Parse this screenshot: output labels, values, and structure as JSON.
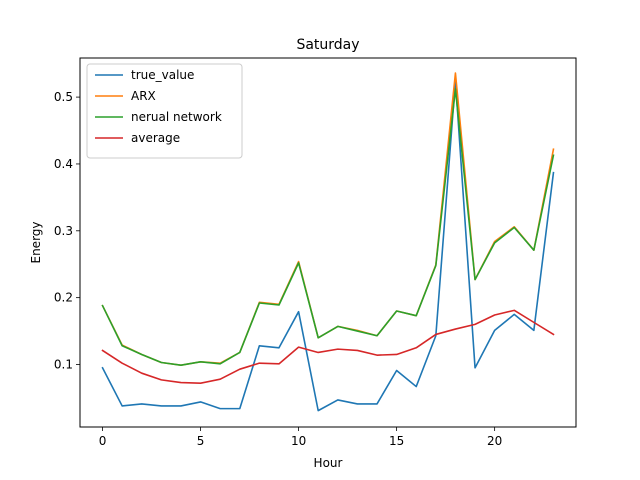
{
  "chart_data": {
    "type": "line",
    "title": "Saturday",
    "xlabel": "Hour",
    "ylabel": "Energy",
    "xlim": [
      -1.15,
      24.15
    ],
    "ylim": [
      0.0065,
      0.5585
    ],
    "xticks": [
      0,
      5,
      10,
      15,
      20
    ],
    "yticks": [
      0.1,
      0.2,
      0.3,
      0.4,
      0.5
    ],
    "legend_position": "top-left",
    "x": [
      0,
      1,
      2,
      3,
      4,
      5,
      6,
      7,
      8,
      9,
      10,
      11,
      12,
      13,
      14,
      15,
      16,
      17,
      18,
      19,
      20,
      21,
      22,
      23
    ],
    "series": [
      {
        "name": "true_value",
        "color": "#1f77b4",
        "values": [
          0.095,
          0.038,
          0.041,
          0.038,
          0.038,
          0.044,
          0.034,
          0.034,
          0.128,
          0.125,
          0.179,
          0.031,
          0.047,
          0.041,
          0.041,
          0.091,
          0.067,
          0.143,
          0.525,
          0.095,
          0.151,
          0.175,
          0.151,
          0.387
        ]
      },
      {
        "name": "ARX",
        "color": "#ff7f0e",
        "values": [
          0.188,
          0.129,
          0.115,
          0.103,
          0.099,
          0.104,
          0.102,
          0.118,
          0.193,
          0.19,
          0.254,
          0.14,
          0.157,
          0.151,
          0.143,
          0.18,
          0.173,
          0.249,
          0.536,
          0.227,
          0.284,
          0.306,
          0.271,
          0.422
        ]
      },
      {
        "name": "nerual network",
        "color": "#2ca02c",
        "values": [
          0.188,
          0.128,
          0.115,
          0.103,
          0.099,
          0.104,
          0.101,
          0.118,
          0.192,
          0.189,
          0.252,
          0.14,
          0.157,
          0.15,
          0.143,
          0.18,
          0.173,
          0.248,
          0.512,
          0.227,
          0.282,
          0.305,
          0.271,
          0.413
        ]
      },
      {
        "name": "average",
        "color": "#d62728",
        "values": [
          0.121,
          0.102,
          0.087,
          0.077,
          0.073,
          0.072,
          0.078,
          0.093,
          0.102,
          0.101,
          0.126,
          0.118,
          0.123,
          0.121,
          0.114,
          0.115,
          0.125,
          0.145,
          0.153,
          0.16,
          0.174,
          0.181,
          0.163,
          0.145
        ]
      }
    ]
  }
}
